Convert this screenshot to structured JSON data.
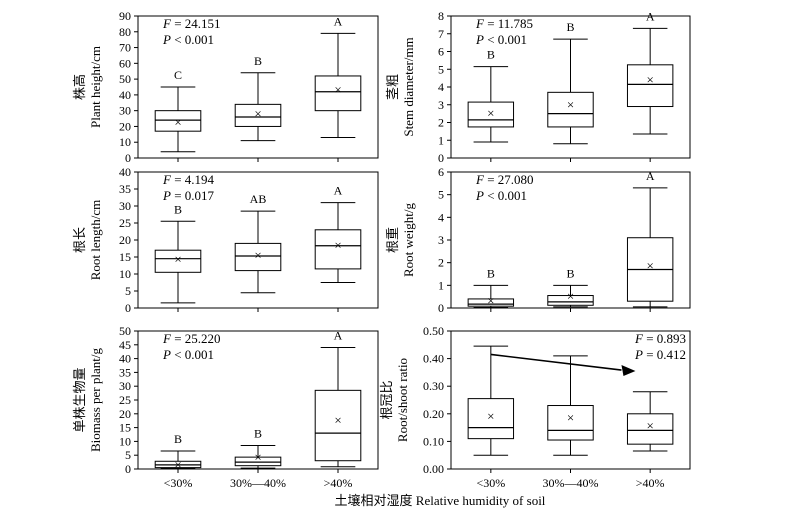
{
  "xlabel": "土壤相对湿度 Relative humidity of soil",
  "categories": [
    "<30%",
    "30%—40%",
    ">40%"
  ],
  "chart_data": [
    {
      "id": "plant-height",
      "type": "boxplot",
      "ylabel_cn": "株高",
      "ylabel_en": "Plant height/cm",
      "ylim": [
        0,
        90
      ],
      "ticks": [
        0,
        10,
        20,
        30,
        40,
        50,
        60,
        70,
        80,
        90
      ],
      "stat_f": "= 24.151",
      "stat_p": "< 0.001",
      "stat_pos": "top-left",
      "boxes": [
        {
          "min": 4,
          "q1": 17,
          "median": 24,
          "q3": 30,
          "max": 45,
          "mean": 22.5,
          "letter": "C"
        },
        {
          "min": 11,
          "q1": 20,
          "median": 26,
          "q3": 34,
          "max": 54,
          "mean": 28,
          "letter": "B"
        },
        {
          "min": 13,
          "q1": 30,
          "median": 42,
          "q3": 52,
          "max": 79,
          "mean": 43,
          "letter": "A"
        }
      ]
    },
    {
      "id": "stem-diameter",
      "type": "boxplot",
      "ylabel_cn": "茎粗",
      "ylabel_en": "Stem diameter/mm",
      "ylim": [
        0,
        8
      ],
      "ticks": [
        0,
        1,
        2,
        3,
        4,
        5,
        6,
        7,
        8
      ],
      "stat_f": "= 11.785",
      "stat_p": "< 0.001",
      "stat_pos": "top-left",
      "boxes": [
        {
          "min": 0.9,
          "q1": 1.75,
          "median": 2.15,
          "q3": 3.15,
          "max": 5.15,
          "mean": 2.5,
          "letter": "B"
        },
        {
          "min": 0.8,
          "q1": 1.75,
          "median": 2.5,
          "q3": 3.7,
          "max": 6.7,
          "mean": 3.0,
          "letter": "B"
        },
        {
          "min": 1.35,
          "q1": 2.9,
          "median": 4.15,
          "q3": 5.25,
          "max": 7.3,
          "mean": 4.4,
          "letter": "A"
        }
      ]
    },
    {
      "id": "root-length",
      "type": "boxplot",
      "ylabel_cn": "根长",
      "ylabel_en": "Root length/cm",
      "ylim": [
        0,
        40
      ],
      "ticks": [
        0,
        5,
        10,
        15,
        20,
        25,
        30,
        35,
        40
      ],
      "stat_f": "= 4.194",
      "stat_p": "= 0.017",
      "stat_pos": "top-left",
      "boxes": [
        {
          "min": 1.5,
          "q1": 10.5,
          "median": 14.5,
          "q3": 17,
          "max": 25.5,
          "mean": 14.3,
          "letter": "B"
        },
        {
          "min": 4.5,
          "q1": 11,
          "median": 15.3,
          "q3": 19,
          "max": 28.5,
          "mean": 15.5,
          "letter": "AB"
        },
        {
          "min": 7.5,
          "q1": 11.5,
          "median": 18.3,
          "q3": 23,
          "max": 31,
          "mean": 18.4,
          "letter": "A"
        }
      ]
    },
    {
      "id": "root-weight",
      "type": "boxplot",
      "ylabel_cn": "根重",
      "ylabel_en": "Root weight/g",
      "ylim": [
        0,
        6
      ],
      "ticks": [
        0,
        1,
        2,
        3,
        4,
        5,
        6
      ],
      "stat_f": "= 27.080",
      "stat_p": "< 0.001",
      "stat_pos": "top-left",
      "boxes": [
        {
          "min": 0.02,
          "q1": 0.08,
          "median": 0.17,
          "q3": 0.4,
          "max": 1.0,
          "mean": 0.3,
          "letter": "B"
        },
        {
          "min": 0.05,
          "q1": 0.12,
          "median": 0.27,
          "q3": 0.55,
          "max": 1.0,
          "mean": 0.5,
          "letter": "B"
        },
        {
          "min": 0.05,
          "q1": 0.3,
          "median": 1.7,
          "q3": 3.1,
          "max": 5.3,
          "mean": 1.85,
          "letter": "A"
        }
      ]
    },
    {
      "id": "biomass",
      "type": "boxplot",
      "ylabel_cn": "单株生物量",
      "ylabel_en": "Biomass per plant/g",
      "ylim": [
        0,
        50
      ],
      "ticks": [
        0,
        5,
        10,
        15,
        20,
        25,
        30,
        35,
        40,
        45,
        50
      ],
      "stat_f": "= 25.220",
      "stat_p": "< 0.001",
      "stat_pos": "top-left",
      "boxes": [
        {
          "min": 0.2,
          "q1": 0.5,
          "median": 1.5,
          "q3": 2.8,
          "max": 6.5,
          "mean": 1.5,
          "letter": "B"
        },
        {
          "min": 0.3,
          "q1": 1.2,
          "median": 2.5,
          "q3": 4.3,
          "max": 8.5,
          "mean": 4.2,
          "letter": "B"
        },
        {
          "min": 0.8,
          "q1": 3.0,
          "median": 13,
          "q3": 28.5,
          "max": 44,
          "mean": 17.5,
          "letter": "A"
        }
      ]
    },
    {
      "id": "root-shoot-ratio",
      "type": "boxplot",
      "ylabel_cn": "根冠比",
      "ylabel_en": "Root/shoot ratio",
      "ylim": [
        0,
        0.5
      ],
      "ticks": [
        "0.00",
        "0.10",
        "0.20",
        "0.30",
        "0.40",
        "0.50"
      ],
      "stat_f": "= 0.893",
      "stat_p": "= 0.412",
      "stat_pos": "top-right",
      "trend_arrow": {
        "from": 0.415,
        "to": 0.355
      },
      "boxes": [
        {
          "min": 0.05,
          "q1": 0.11,
          "median": 0.15,
          "q3": 0.255,
          "max": 0.445,
          "mean": 0.19,
          "letter": ""
        },
        {
          "min": 0.05,
          "q1": 0.105,
          "median": 0.14,
          "q3": 0.23,
          "max": 0.41,
          "mean": 0.185,
          "letter": ""
        },
        {
          "min": 0.065,
          "q1": 0.09,
          "median": 0.14,
          "q3": 0.2,
          "max": 0.28,
          "mean": 0.155,
          "letter": ""
        }
      ]
    }
  ]
}
